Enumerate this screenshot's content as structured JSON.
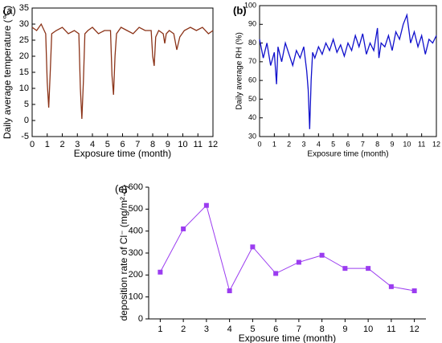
{
  "chart_data": [
    {
      "type": "line",
      "label": "(a)",
      "xlabel": "Exposure time (month)",
      "ylabel": "Daily average temperature (℃)",
      "color": "#8b3318",
      "x": [
        0,
        0.3,
        0.6,
        0.9,
        1.0,
        1.1,
        1.2,
        1.3,
        1.6,
        2.0,
        2.4,
        2.8,
        3.1,
        3.2,
        3.3,
        3.4,
        3.5,
        3.7,
        4.0,
        4.4,
        4.8,
        5.2,
        5.3,
        5.4,
        5.5,
        5.6,
        5.9,
        6.3,
        6.7,
        7.1,
        7.5,
        7.9,
        8.0,
        8.1,
        8.2,
        8.4,
        8.7,
        8.8,
        8.9,
        9.1,
        9.4,
        9.6,
        9.8,
        10.1,
        10.5,
        10.9,
        11.3,
        11.7,
        12
      ],
      "values": [
        29,
        28,
        30,
        27,
        12,
        4,
        15,
        27,
        28,
        29,
        27,
        28,
        27,
        10,
        0.5,
        12,
        27,
        28,
        29,
        27,
        28,
        28,
        14,
        8,
        20,
        27,
        29,
        28,
        27,
        29,
        28,
        28,
        20,
        17,
        26,
        28,
        27,
        24,
        27,
        28,
        27,
        22,
        26,
        28,
        29,
        28,
        29,
        27,
        28
      ],
      "xlim": [
        0,
        12
      ],
      "xticks": [
        0,
        1,
        2,
        3,
        4,
        5,
        6,
        7,
        8,
        9,
        10,
        11,
        12
      ],
      "ylim": [
        -5,
        35
      ],
      "yticks": [
        -5,
        0,
        5,
        10,
        15,
        20,
        25,
        30,
        35
      ]
    },
    {
      "type": "line",
      "label": "(b)",
      "xlabel": "Exposure time (month)",
      "ylabel": "Daily average RH (%)",
      "color": "#1010cc",
      "x": [
        0,
        0.25,
        0.5,
        0.75,
        1.0,
        1.15,
        1.25,
        1.5,
        1.75,
        2,
        2.25,
        2.5,
        2.75,
        3,
        3.2,
        3.3,
        3.4,
        3.5,
        3.6,
        3.75,
        4,
        4.25,
        4.5,
        4.75,
        5,
        5.25,
        5.5,
        5.75,
        6,
        6.25,
        6.5,
        6.75,
        7,
        7.25,
        7.5,
        7.75,
        8,
        8.1,
        8.25,
        8.5,
        8.75,
        9,
        9.25,
        9.5,
        9.75,
        10,
        10.25,
        10.5,
        10.75,
        11,
        11.25,
        11.5,
        11.75,
        12
      ],
      "values": [
        82,
        72,
        80,
        68,
        75,
        58,
        78,
        70,
        80,
        74,
        68,
        76,
        72,
        78,
        65,
        55,
        34,
        60,
        75,
        72,
        78,
        74,
        80,
        76,
        82,
        75,
        79,
        73,
        80,
        76,
        84,
        78,
        85,
        74,
        80,
        76,
        88,
        72,
        80,
        78,
        84,
        76,
        86,
        82,
        90,
        95,
        80,
        86,
        78,
        84,
        74,
        82,
        80,
        84
      ],
      "xlim": [
        0,
        12
      ],
      "xticks": [
        0,
        1,
        2,
        3,
        4,
        5,
        6,
        7,
        8,
        9,
        10,
        11,
        12
      ],
      "ylim": [
        30,
        100
      ],
      "yticks": [
        30,
        40,
        50,
        60,
        70,
        80,
        90,
        100
      ]
    },
    {
      "type": "line",
      "marker": "square",
      "label": "(c)",
      "xlabel": "Exposure time (month)",
      "ylabel": "deposition rate of Cl⁻ (mg/m²·d)",
      "color": "#9b3cf0",
      "categories": [
        "1",
        "2",
        "3",
        "4",
        "5",
        "6",
        "7",
        "8",
        "9",
        "10",
        "11",
        "12"
      ],
      "values": [
        213,
        410,
        517,
        128,
        328,
        207,
        258,
        290,
        230,
        230,
        147,
        128
      ],
      "ylim": [
        0,
        600
      ],
      "yticks": [
        0,
        100,
        200,
        300,
        400,
        500,
        600
      ]
    }
  ]
}
